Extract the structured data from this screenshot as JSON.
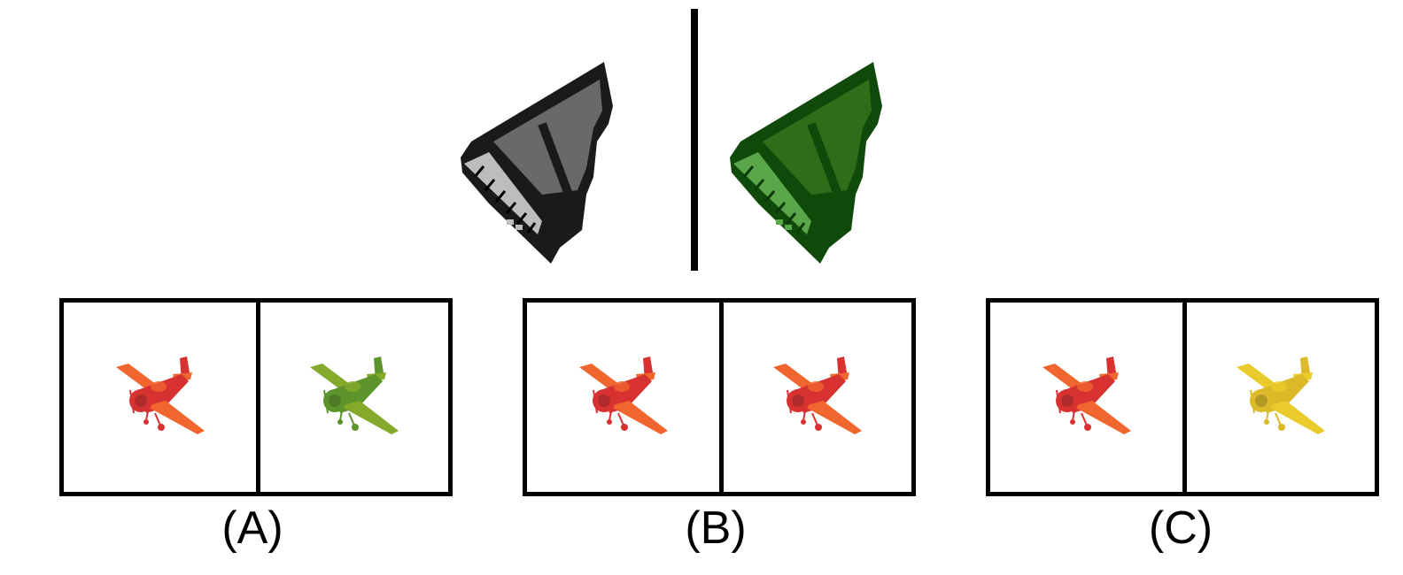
{
  "example": {
    "left_item": {
      "icon": "grand-piano-icon",
      "color": "#1a1a1a",
      "accent": "#bdbdbd"
    },
    "right_item": {
      "icon": "grand-piano-icon",
      "color": "#0f4a0a",
      "accent": "#5aa64a"
    }
  },
  "options": [
    {
      "label": "(A)",
      "left": {
        "icon": "toy-airplane-icon",
        "color": "#d42020",
        "accent": "#f05a1e"
      },
      "right": {
        "icon": "toy-airplane-icon",
        "color": "#4f8a1a",
        "accent": "#7aa21a"
      }
    },
    {
      "label": "(B)",
      "left": {
        "icon": "toy-airplane-icon",
        "color": "#d42020",
        "accent": "#f05a1e"
      },
      "right": {
        "icon": "toy-airplane-icon",
        "color": "#d42020",
        "accent": "#f05a1e"
      }
    },
    {
      "label": "(C)",
      "left": {
        "icon": "toy-airplane-icon",
        "color": "#d42020",
        "accent": "#f05a1e"
      },
      "right": {
        "icon": "toy-airplane-icon",
        "color": "#d9b416",
        "accent": "#e8c81a"
      }
    }
  ]
}
